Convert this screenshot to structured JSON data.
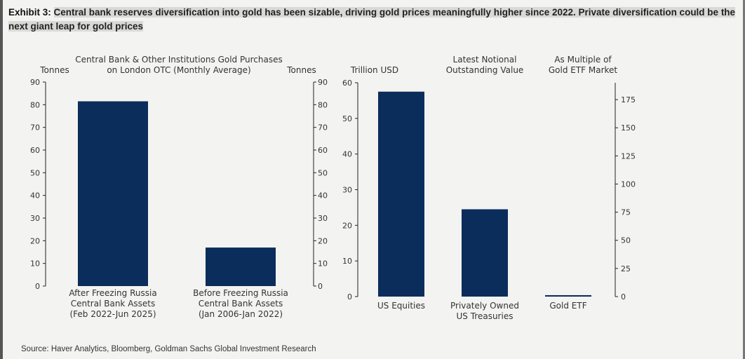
{
  "title": {
    "label": "Exhibit 3:",
    "text": "Central bank reserves diversification into gold has been sizable, driving gold prices meaningfully higher since 2022. Private diversification could be the next giant leap for gold prices"
  },
  "source": "Source: Haver Analytics, Bloomberg, Goldman Sachs Global Investment Research",
  "colors": {
    "bar": "#0b2d5b",
    "background": "#f3f3f1"
  },
  "chart_data": [
    {
      "type": "bar",
      "title_lines": [
        "Central Bank & Other Institutions Gold Purchases",
        "on London OTC (Monthly Average)"
      ],
      "ylabel_left": "Tonnes",
      "ylabel_right": "Tonnes",
      "ylim": [
        0,
        90
      ],
      "yticks": [
        0,
        10,
        20,
        30,
        40,
        50,
        60,
        70,
        80,
        90
      ],
      "categories": [
        [
          "After Freezing Russia",
          "Central Bank Assets",
          "(Feb 2022-Jun 2025)"
        ],
        [
          "Before Freezing Russia",
          "Central Bank Assets",
          "(Jan 2006-Jan 2022)"
        ]
      ],
      "values": [
        81.5,
        17
      ]
    },
    {
      "type": "bar",
      "title_lines": [
        "Latest Notional",
        "Outstanding Value"
      ],
      "ylabel_left": "Trillion USD",
      "ylabel_right_lines": [
        "As Multiple of",
        "Gold ETF Market"
      ],
      "ylim": [
        0,
        60
      ],
      "yticks": [
        0,
        10,
        20,
        30,
        40,
        50,
        60
      ],
      "ylim_right": [
        0,
        190
      ],
      "yticks_right": [
        0,
        25,
        50,
        75,
        100,
        125,
        150,
        175
      ],
      "categories": [
        [
          "US Equities"
        ],
        [
          "Privately Owned",
          "US Treasuries"
        ],
        [
          "Gold ETF"
        ]
      ],
      "values": [
        57.5,
        24.5,
        0.4
      ]
    }
  ]
}
